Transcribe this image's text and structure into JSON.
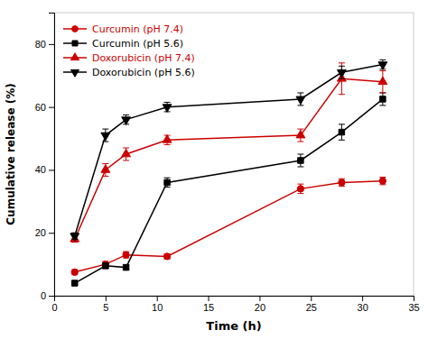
{
  "chart_data": {
    "type": "line",
    "xlabel": "Time (h)",
    "ylabel": "Cumulative release (%)",
    "x": [
      2,
      5,
      7,
      11,
      24,
      28,
      32
    ],
    "series": [
      {
        "name": "Curcumin (pH 7.4)",
        "color": "#cc0000",
        "marker": "circle",
        "line_style": "solid",
        "values": [
          7.5,
          10.0,
          13.0,
          12.5,
          34.0,
          36.0,
          36.5
        ],
        "errors": [
          0.8,
          0.9,
          1.0,
          0.8,
          1.5,
          1.2,
          1.2
        ]
      },
      {
        "name": "Curcumin (pH 5.6)",
        "color": "#000000",
        "marker": "square",
        "line_style": "solid",
        "values": [
          4.0,
          9.5,
          9.0,
          36.0,
          43.0,
          52.0,
          62.5
        ],
        "errors": [
          0.5,
          0.8,
          0.8,
          1.5,
          2.0,
          2.5,
          2.0
        ]
      },
      {
        "name": "Doxorubicin (pH 7.4)",
        "color": "#cc0000",
        "marker": "triangle-up",
        "line_style": "solid",
        "values": [
          18.0,
          40.0,
          45.0,
          49.5,
          51.0,
          69.0,
          68.0
        ],
        "errors": [
          1.0,
          2.0,
          2.0,
          1.5,
          2.0,
          5.0,
          3.5
        ]
      },
      {
        "name": "Doxorubicin (pH 5.6)",
        "color": "#000000",
        "marker": "triangle-down",
        "line_style": "solid",
        "values": [
          19.0,
          51.0,
          56.0,
          60.0,
          62.5,
          71.0,
          73.5
        ],
        "errors": [
          1.0,
          2.0,
          1.5,
          1.5,
          2.0,
          2.0,
          1.5
        ]
      }
    ],
    "xlim": [
      0,
      35
    ],
    "ylim": [
      0,
      90
    ],
    "xticks": [
      0,
      5,
      10,
      15,
      20,
      25,
      30,
      35
    ],
    "yticks": [
      0,
      20,
      40,
      60,
      80
    ],
    "grid": false,
    "legend": "upper left"
  }
}
